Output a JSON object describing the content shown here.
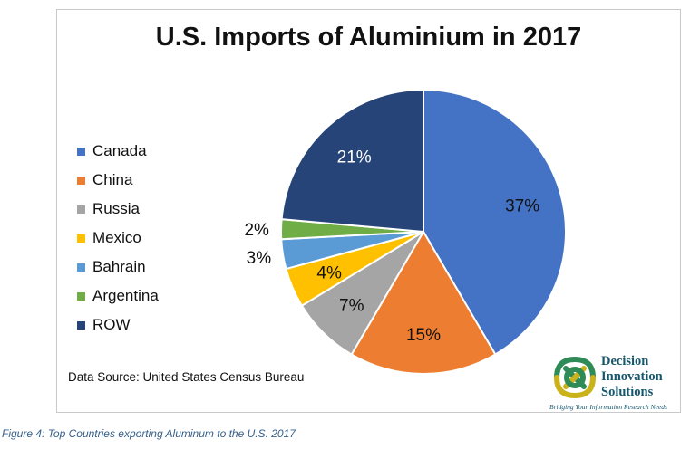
{
  "chart_data": {
    "type": "pie",
    "title": "U.S. Imports of Aluminium in 2017",
    "categories": [
      "Canada",
      "China",
      "Russia",
      "Mexico",
      "Bahrain",
      "Argentina",
      "ROW"
    ],
    "values": [
      37,
      15,
      7,
      4,
      3,
      2,
      21
    ],
    "value_labels": [
      "37%",
      "15%",
      "7%",
      "4%",
      "3%",
      "2%",
      "21%"
    ],
    "colors": [
      "#4472c4",
      "#ed7d31",
      "#a5a5a5",
      "#ffc000",
      "#5b9bd5",
      "#70ad47",
      "#264478"
    ],
    "legend_position": "left"
  },
  "source_text": "Data Source: United States Census Bureau",
  "logo": {
    "line1": "Decision",
    "line2": "Innovation",
    "line3": "Solutions",
    "tagline": "Bridging Your Information Research Needs"
  },
  "caption": "Figure 4: Top Countries exporting Aluminum to the U.S. 2017"
}
